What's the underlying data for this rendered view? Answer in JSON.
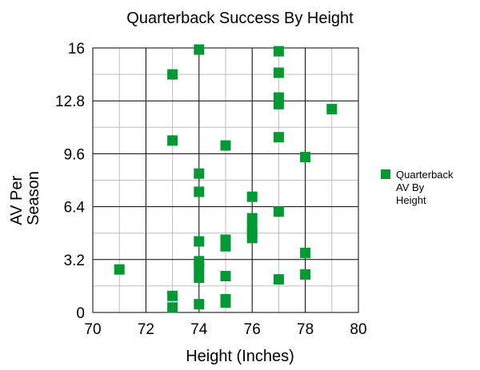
{
  "chart_data": {
    "type": "scatter",
    "title": "Quarterback Success By Height",
    "xlabel": "Height (Inches)",
    "ylabel": [
      "AV Per",
      "Season"
    ],
    "xlim": [
      70,
      80
    ],
    "ylim": [
      0,
      16
    ],
    "x_ticks": [
      "70",
      "72",
      "74",
      "76",
      "78",
      "80"
    ],
    "y_ticks": [
      "0",
      "3.2",
      "6.4",
      "9.6",
      "12.8",
      "16"
    ],
    "x_tick_values": [
      70,
      72,
      74,
      76,
      78,
      80
    ],
    "y_tick_values": [
      0,
      3.2,
      6.4,
      9.6,
      12.8,
      16
    ],
    "grid": true,
    "legend_position": "right",
    "series": [
      {
        "name": [
          "Quarterback",
          "AV By",
          "Height"
        ],
        "color": "#009933",
        "points": [
          [
            71,
            2.6
          ],
          [
            73,
            14.4
          ],
          [
            73,
            10.4
          ],
          [
            73,
            1.0
          ],
          [
            73,
            0.3
          ],
          [
            74,
            15.9
          ],
          [
            74,
            8.4
          ],
          [
            74,
            7.3
          ],
          [
            74,
            4.3
          ],
          [
            74,
            3.1
          ],
          [
            74,
            2.7
          ],
          [
            74,
            2.1
          ],
          [
            74,
            0.5
          ],
          [
            75,
            10.1
          ],
          [
            75,
            4.4
          ],
          [
            75,
            4.0
          ],
          [
            75,
            2.2
          ],
          [
            75,
            0.8
          ],
          [
            75,
            0.6
          ],
          [
            76,
            7.0
          ],
          [
            76,
            5.7
          ],
          [
            76,
            5.2
          ],
          [
            76,
            4.8
          ],
          [
            76,
            4.5
          ],
          [
            77,
            15.8
          ],
          [
            77,
            14.5
          ],
          [
            77,
            13.0
          ],
          [
            77,
            12.6
          ],
          [
            77,
            10.6
          ],
          [
            77,
            6.1
          ],
          [
            77,
            2.0
          ],
          [
            78,
            9.4
          ],
          [
            78,
            3.6
          ],
          [
            78,
            2.3
          ],
          [
            79,
            12.3
          ]
        ]
      }
    ]
  }
}
